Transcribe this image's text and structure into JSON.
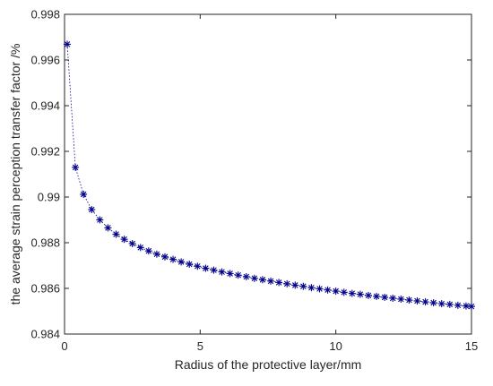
{
  "chart_data": {
    "type": "scatter",
    "title": "",
    "xlabel": "Radius of the protective layer/mm",
    "ylabel": "the average strain perception transfer factor /%",
    "xlim": [
      0,
      15
    ],
    "ylim": [
      0.984,
      0.998
    ],
    "xticks": [
      0,
      5,
      10,
      15
    ],
    "xtick_labels": [
      "0",
      "5",
      "10",
      "15"
    ],
    "yticks": [
      0.984,
      0.986,
      0.988,
      0.99,
      0.992,
      0.994,
      0.996,
      0.998
    ],
    "ytick_labels": [
      "0.984",
      "0.986",
      "0.988",
      "0.99",
      "0.992",
      "0.994",
      "0.996",
      "0.998"
    ],
    "grid": false,
    "legend": "none",
    "marker": "asterisk",
    "color": "#00008b",
    "line_style": "dotted",
    "series": [
      {
        "x": [
          0.1,
          0.4,
          0.7,
          1.0,
          1.3,
          1.6,
          1.9,
          2.2,
          2.5,
          2.8,
          3.1,
          3.4,
          3.7,
          4.0,
          4.3,
          4.6,
          4.9,
          5.2,
          5.5,
          5.8,
          6.1,
          6.4,
          6.7,
          7.0,
          7.3,
          7.6,
          7.9,
          8.2,
          8.5,
          8.8,
          9.1,
          9.4,
          9.7,
          10.0,
          10.3,
          10.6,
          10.9,
          11.2,
          11.5,
          11.8,
          12.1,
          12.4,
          12.7,
          13.0,
          13.3,
          13.6,
          13.9,
          14.2,
          14.5,
          14.8,
          15.0
        ],
        "y": [
          0.99669,
          0.9913,
          0.99012,
          0.98945,
          0.989,
          0.98865,
          0.98837,
          0.98815,
          0.98796,
          0.98779,
          0.98764,
          0.9875,
          0.98738,
          0.98727,
          0.98716,
          0.98706,
          0.98697,
          0.98688,
          0.9868,
          0.98672,
          0.98665,
          0.98658,
          0.98651,
          0.98644,
          0.98638,
          0.98632,
          0.98626,
          0.9862,
          0.98614,
          0.98609,
          0.98603,
          0.98598,
          0.98593,
          0.98588,
          0.98583,
          0.98578,
          0.98574,
          0.98569,
          0.98565,
          0.98561,
          0.98557,
          0.98553,
          0.98549,
          0.98545,
          0.98541,
          0.98537,
          0.98533,
          0.9853,
          0.98526,
          0.98523,
          0.98521
        ]
      }
    ]
  }
}
